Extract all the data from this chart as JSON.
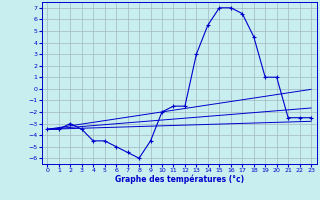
{
  "hours": [
    0,
    1,
    2,
    3,
    4,
    5,
    6,
    7,
    8,
    9,
    10,
    11,
    12,
    13,
    14,
    15,
    16,
    17,
    18,
    19,
    20,
    21,
    22,
    23
  ],
  "temp_curve": [
    -3.5,
    -3.5,
    -3.0,
    -3.5,
    -4.5,
    -4.5,
    -5.0,
    -5.5,
    -6.0,
    -4.5,
    -2.0,
    -1.5,
    -1.5,
    3.0,
    5.5,
    7.0,
    7.0,
    6.5,
    4.5,
    1.0,
    1.0,
    -2.5,
    -2.5,
    -2.5
  ],
  "trend1": [
    -3.5,
    -3.35,
    -3.2,
    -3.05,
    -2.9,
    -2.75,
    -2.6,
    -2.45,
    -2.3,
    -2.15,
    -2.0,
    -1.85,
    -1.7,
    -1.55,
    -1.4,
    -1.25,
    -1.1,
    -0.95,
    -0.8,
    -0.65,
    -0.5,
    -0.35,
    -0.2,
    -0.05
  ],
  "trend2": [
    -3.5,
    -3.42,
    -3.34,
    -3.26,
    -3.18,
    -3.1,
    -3.02,
    -2.94,
    -2.86,
    -2.78,
    -2.7,
    -2.62,
    -2.54,
    -2.46,
    -2.38,
    -2.3,
    -2.22,
    -2.14,
    -2.06,
    -1.98,
    -1.9,
    -1.82,
    -1.74,
    -1.66
  ],
  "trend3": [
    -3.5,
    -3.47,
    -3.44,
    -3.41,
    -3.38,
    -3.35,
    -3.32,
    -3.29,
    -3.26,
    -3.23,
    -3.2,
    -3.17,
    -3.14,
    -3.11,
    -3.08,
    -3.05,
    -3.02,
    -2.99,
    -2.96,
    -2.93,
    -2.9,
    -2.87,
    -2.84,
    -2.81
  ],
  "line_color": "#0000cc",
  "bg_color": "#c8eef0",
  "grid_color": "#a0b8c0",
  "xlabel": "Graphe des températures (°c)",
  "ylim": [
    -6.5,
    7.5
  ],
  "xlim": [
    -0.5,
    23.5
  ],
  "yticks": [
    -6,
    -5,
    -4,
    -3,
    -2,
    -1,
    0,
    1,
    2,
    3,
    4,
    5,
    6,
    7
  ],
  "xticks": [
    0,
    1,
    2,
    3,
    4,
    5,
    6,
    7,
    8,
    9,
    10,
    11,
    12,
    13,
    14,
    15,
    16,
    17,
    18,
    19,
    20,
    21,
    22,
    23
  ]
}
